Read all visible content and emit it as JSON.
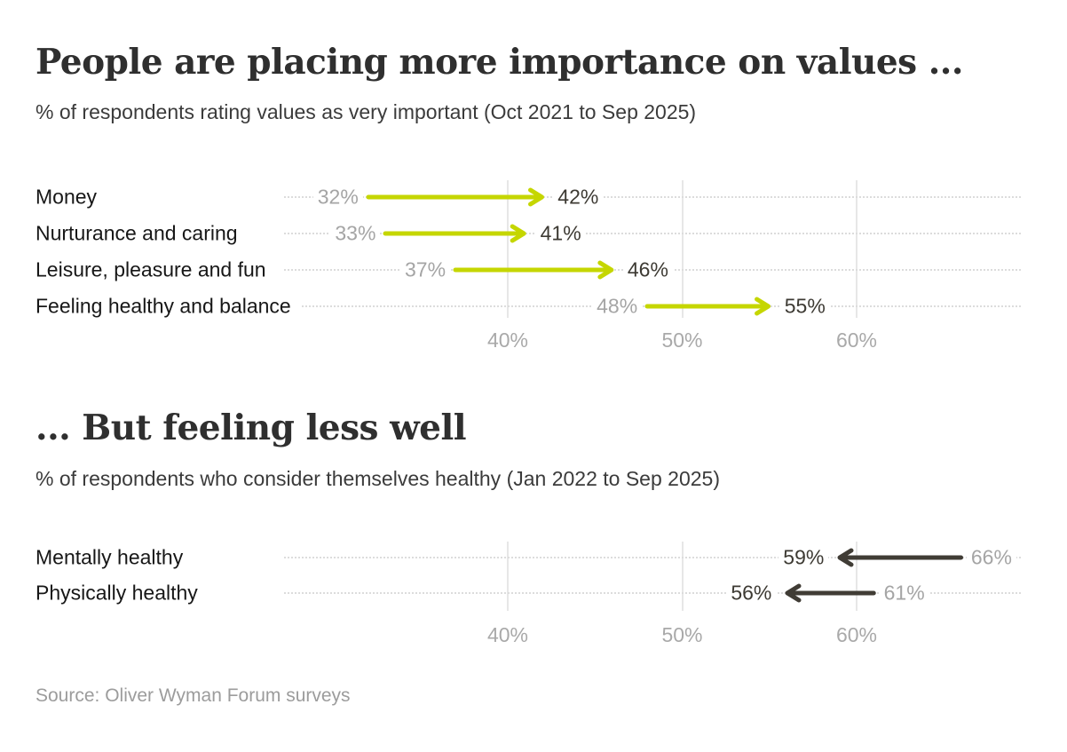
{
  "source": "Source: Oliver Wyman Forum surveys",
  "colors": {
    "increase_arrow": "#c5d600",
    "decrease_arrow": "#403c35",
    "start_value_text": "#a5a5a5",
    "end_value_text": "#3d3a33",
    "title_text": "#2f2f2f",
    "axis_text": "#a9a9a9"
  },
  "chart_data": [
    {
      "type": "arrow",
      "title": "People are placing more importance on values ...",
      "subtitle": "% of respondents rating values as very important (Oct 2021 to Sep 2025)",
      "direction": "increase",
      "arrow_color": "#c5d600",
      "categories": [
        "Money",
        "Nurturance and caring",
        "Leisure, pleasure and fun",
        "Feeling healthy and balance"
      ],
      "series": [
        {
          "name": "start",
          "values": [
            32,
            33,
            37,
            48
          ]
        },
        {
          "name": "end",
          "values": [
            42,
            41,
            46,
            55
          ]
        }
      ],
      "value_suffix": "%",
      "x_ticks": [
        40,
        50,
        60
      ],
      "tick_labels": [
        "40%",
        "50%",
        "60%"
      ],
      "xlim": [
        30,
        65
      ],
      "grid": true,
      "legend": "none"
    },
    {
      "type": "arrow",
      "title": "... But feeling less well",
      "subtitle": "% of respondents who consider themselves healthy (Jan 2022 to Sep 2025)",
      "direction": "decrease",
      "arrow_color": "#403c35",
      "categories": [
        "Mentally healthy",
        "Physically healthy"
      ],
      "series": [
        {
          "name": "start",
          "values": [
            66,
            61
          ]
        },
        {
          "name": "end",
          "values": [
            59,
            56
          ]
        }
      ],
      "value_suffix": "%",
      "x_ticks": [
        40,
        50,
        60
      ],
      "tick_labels": [
        "40%",
        "50%",
        "60%"
      ],
      "xlim": [
        30,
        70
      ],
      "grid": true,
      "legend": "none"
    }
  ]
}
